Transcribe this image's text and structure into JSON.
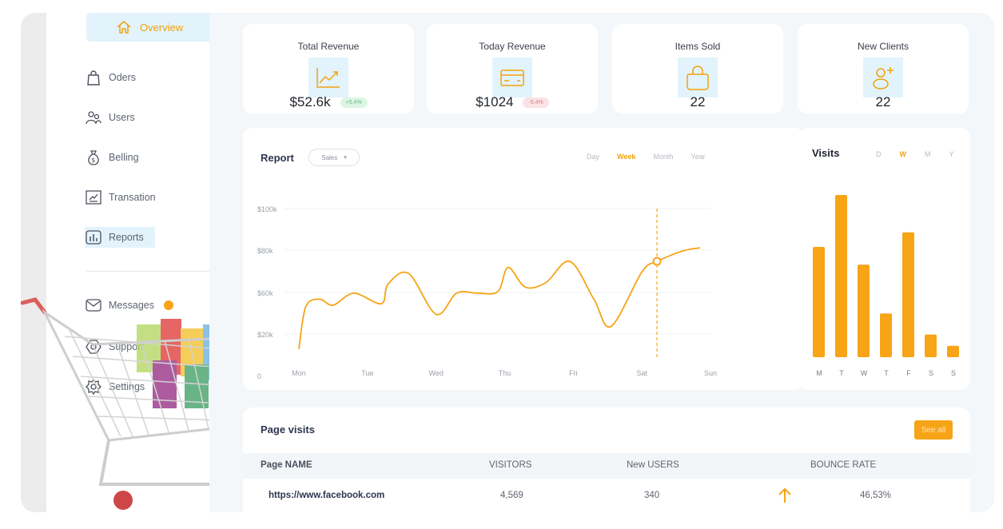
{
  "sidebar": {
    "overview": "Overview",
    "items": [
      {
        "label": "Oders",
        "icon": "bag-icon"
      },
      {
        "label": "Users",
        "icon": "users-icon"
      },
      {
        "label": "Belling",
        "icon": "money-bag-icon"
      },
      {
        "label": "Transation",
        "icon": "chart-board-icon"
      },
      {
        "label": "Reports",
        "icon": "bar-report-icon"
      },
      {
        "label": "Messages",
        "icon": "mail-icon"
      },
      {
        "label": "Support",
        "icon": "support-icon"
      },
      {
        "label": "Settings",
        "icon": "gear-icon"
      }
    ]
  },
  "stats": [
    {
      "title": "Total Revenue",
      "value": "$52.6k",
      "change": "+5.4%",
      "icon": "trend-up-icon"
    },
    {
      "title": "Today Revenue",
      "value": "$1024",
      "change": "-5.4%",
      "icon": "card-icon"
    },
    {
      "title": "Items  Sold",
      "value": "22",
      "icon": "bag-icon"
    },
    {
      "title": "New  Clients",
      "value": "22",
      "icon": "add-user-icon"
    }
  ],
  "report": {
    "title": "Report",
    "select_value": "Sales",
    "ranges": [
      "Day",
      "Week",
      "Month",
      "Year"
    ],
    "active_range": "Week"
  },
  "visits": {
    "title": "Visits",
    "tabs": [
      "D",
      "W",
      "M",
      "Y"
    ],
    "active_tab": "W"
  },
  "page_visits": {
    "title": "Page visits",
    "see_all": "See all",
    "columns": [
      "Page  NAME",
      "VISITORS",
      "New USERS",
      "BOUNCE RATE"
    ],
    "rows": [
      {
        "page": "https://www.facebook.com",
        "visitors": "4,569",
        "new_users": "340",
        "bounce_rate": "46,53%",
        "trend": "up"
      }
    ]
  },
  "colors": {
    "accent": "#f7a416",
    "icon_bg": "#e2f3fb"
  },
  "chart_data": [
    {
      "type": "line",
      "x": [
        "Mon",
        "Tue",
        "Wed",
        "Thu",
        "Fri",
        "Sat",
        "Sun"
      ],
      "yticks": [
        "$100k",
        "$80k",
        "$60k",
        "$20k",
        "0"
      ],
      "ylim": [
        0,
        100
      ],
      "series": [
        {
          "points": [
            [
              0.0,
              7
            ],
            [
              0.1,
              35
            ],
            [
              0.3,
              40
            ],
            [
              0.5,
              36
            ],
            [
              0.8,
              44
            ],
            [
              1.2,
              37
            ],
            [
              1.3,
              50
            ],
            [
              1.6,
              57
            ],
            [
              2.0,
              30
            ],
            [
              2.3,
              44
            ],
            [
              2.6,
              44
            ],
            [
              2.9,
              45
            ],
            [
              3.05,
              61
            ],
            [
              3.3,
              48
            ],
            [
              3.6,
              51
            ],
            [
              3.95,
              65
            ],
            [
              4.3,
              40
            ],
            [
              4.55,
              22
            ],
            [
              5.0,
              58
            ],
            [
              5.22,
              65
            ],
            [
              5.6,
              72
            ],
            [
              5.85,
              74
            ]
          ]
        }
      ],
      "highlight": {
        "x": 5.22,
        "y": 65
      }
    },
    {
      "type": "bar",
      "categories": [
        "M",
        "T",
        "W",
        "T",
        "F",
        "S",
        "S"
      ],
      "values": [
        68,
        100,
        57,
        27,
        77,
        14,
        7
      ],
      "ylim": [
        0,
        100
      ]
    }
  ]
}
